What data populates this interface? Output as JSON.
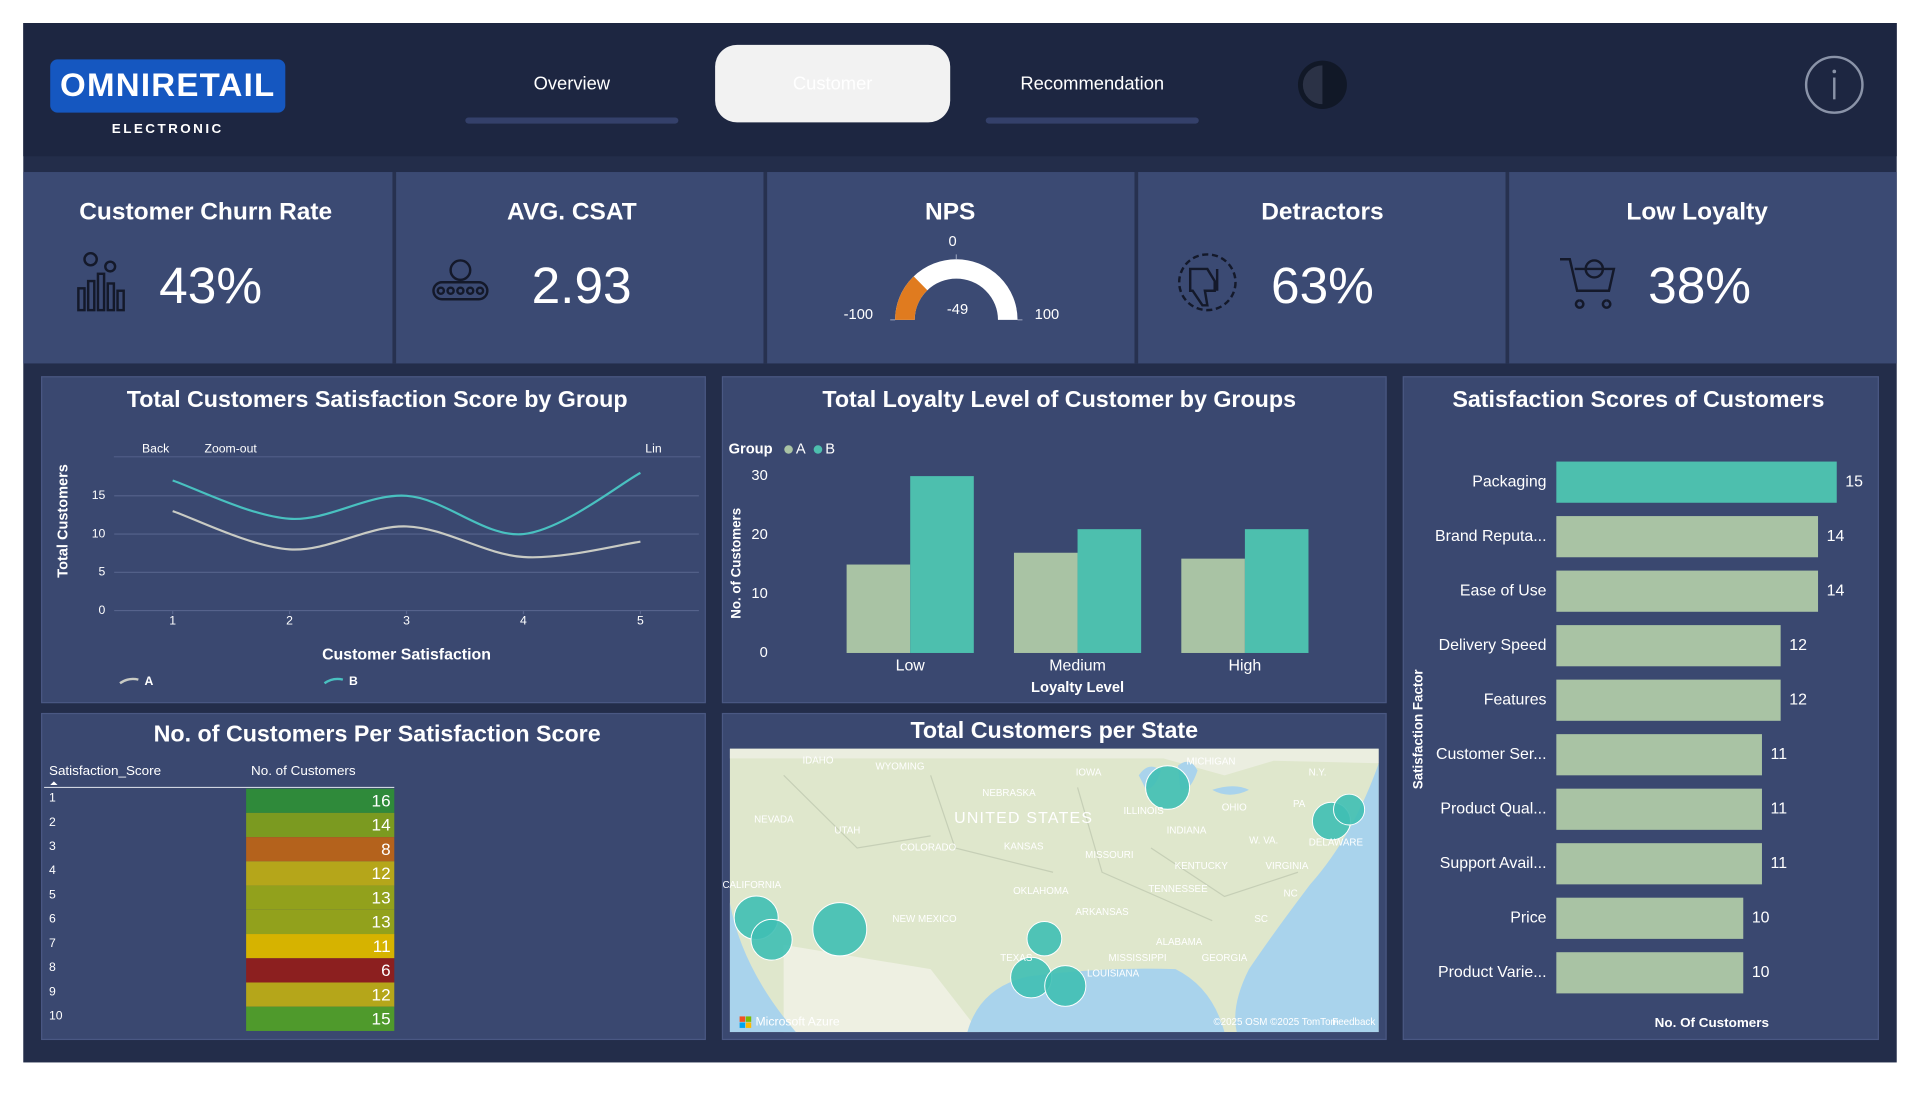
{
  "header": {
    "logo": "OMNIRETAIL",
    "logo_subtitle": "ELECTRONIC",
    "tabs": [
      "Overview",
      "Customer",
      "Recommendation"
    ],
    "active_tab": 1
  },
  "kpis": [
    {
      "title": "Customer Churn Rate",
      "value": "43%"
    },
    {
      "title": "AVG. CSAT",
      "value": "2.93"
    },
    {
      "title": "Detractors",
      "value": "63%"
    },
    {
      "title": "Low Loyalty",
      "value": "38%"
    }
  ],
  "chart_data": [
    {
      "type": "gauge",
      "title": "NPS",
      "value": -49,
      "range": [
        -100,
        100
      ],
      "ticks": [
        -100,
        0,
        100
      ],
      "color": "#e07b1f",
      "track_color": "#ffffff",
      "value_color": "#e0504a"
    },
    {
      "type": "line",
      "title": "Total Customers Satisfaction Score by Group",
      "x": [
        1,
        2,
        3,
        4,
        5
      ],
      "xlim": [
        0.5,
        5.5
      ],
      "xticks": [
        1,
        2,
        3,
        4,
        5
      ],
      "ylim": [
        0,
        19
      ],
      "yticks": [
        0,
        5,
        10,
        15
      ],
      "grid": true,
      "smooth": true,
      "x_label": "Customer Satisfaction",
      "y_label": "Total Customers",
      "toolbar": [
        "Back",
        "Zoom-out",
        "Lin"
      ],
      "series": [
        {
          "name": "A",
          "color": "#c9cbc4",
          "values": [
            13,
            8,
            11,
            7,
            9
          ]
        },
        {
          "name": "B",
          "color": "#49c1c0",
          "values": [
            17,
            12,
            15,
            10,
            18
          ]
        }
      ]
    },
    {
      "type": "bar",
      "title": "Total Loyalty Level of Customer by Groups",
      "categories": [
        "Low",
        "Medium",
        "High"
      ],
      "ylim": [
        0,
        30
      ],
      "yticks": [
        0,
        10,
        20,
        30
      ],
      "x_label": "Loyalty Level",
      "y_label": "No. of Customers",
      "legend_title": "Group",
      "series": [
        {
          "name": "A",
          "color": "#a9c3a4",
          "values": [
            15,
            17,
            16
          ]
        },
        {
          "name": "B",
          "color": "#4dbfae",
          "values": [
            30,
            21,
            21
          ]
        }
      ]
    },
    {
      "type": "hbar",
      "title": "Satisfaction Scores of Customers",
      "categories": [
        "Packaging",
        "Brand Reputa...",
        "Ease of Use",
        "Delivery Speed",
        "Features",
        "Customer Ser...",
        "Product Qual...",
        "Support Avail...",
        "Price",
        "Product Varie..."
      ],
      "values": [
        15,
        14,
        14,
        12,
        12,
        11,
        11,
        11,
        10,
        10
      ],
      "xlim": [
        0,
        15
      ],
      "colors": [
        "#4dbfae",
        "#a9c3a4",
        "#a9c3a4",
        "#a9c3a4",
        "#a9c3a4",
        "#a9c3a4",
        "#a9c3a4",
        "#a9c3a4",
        "#a9c3a4",
        "#a9c3a4"
      ],
      "x_label": "No. Of Customers",
      "y_label": "Satisfaction Factor"
    },
    {
      "type": "table",
      "title": "No. of Customers Per Satisfaction Score",
      "columns": [
        "Satisfaction_Score",
        "No. of Customers"
      ],
      "rows": [
        [
          1,
          16
        ],
        [
          2,
          14
        ],
        [
          3,
          8
        ],
        [
          4,
          12
        ],
        [
          5,
          13
        ],
        [
          6,
          13
        ],
        [
          7,
          11
        ],
        [
          8,
          6
        ],
        [
          9,
          12
        ],
        [
          10,
          15
        ]
      ],
      "row_colors": [
        "#2f8a3a",
        "#7b9a20",
        "#b4621c",
        "#b5a61a",
        "#92a11c",
        "#92a11c",
        "#d6b300",
        "#8c1f1f",
        "#b5a61a",
        "#4f9a2c"
      ]
    },
    {
      "type": "map",
      "title": "Total Customers per State",
      "xlim": [
        -125,
        -66
      ],
      "ylim": [
        23,
        50
      ],
      "color": "#3fbfb4",
      "x": [
        -85.2,
        -70.3,
        -68.7,
        -122.6,
        -121.2,
        -115,
        -96.4,
        -97.6,
        -94.5
      ],
      "y": [
        46.3,
        43.1,
        44.2,
        33.9,
        31.8,
        32.8,
        31.9,
        28.2,
        27.4
      ],
      "values": [
        8,
        6,
        4,
        8,
        7,
        12,
        5,
        7,
        7
      ],
      "labels": [
        "IDAHO",
        "WYOMING",
        "NEBRASKA",
        "IOWA",
        "MICHIGAN",
        "N.Y.",
        "NEVADA",
        "UTAH",
        "UNITED STATES",
        "ILLINOIS",
        "OHIO",
        "PA",
        "INDIANA",
        "COLORADO",
        "KANSAS",
        "MISSOURI",
        "W. VA.",
        "DELAWARE",
        "KENTUCKY",
        "VIRGINIA",
        "CALIFORNIA",
        "OKLAHOMA",
        "TENNESSEE",
        "NC",
        "ARKANSAS",
        "NEW MEXICO",
        "SC",
        "ALABAMA",
        "MISSISSIPPI",
        "GEORGIA",
        "TEXAS",
        "LOUISIANA"
      ],
      "attribution": [
        "Microsoft Azure",
        "©2025 OSM  ©2025 TomTom",
        "Feedback"
      ]
    }
  ]
}
